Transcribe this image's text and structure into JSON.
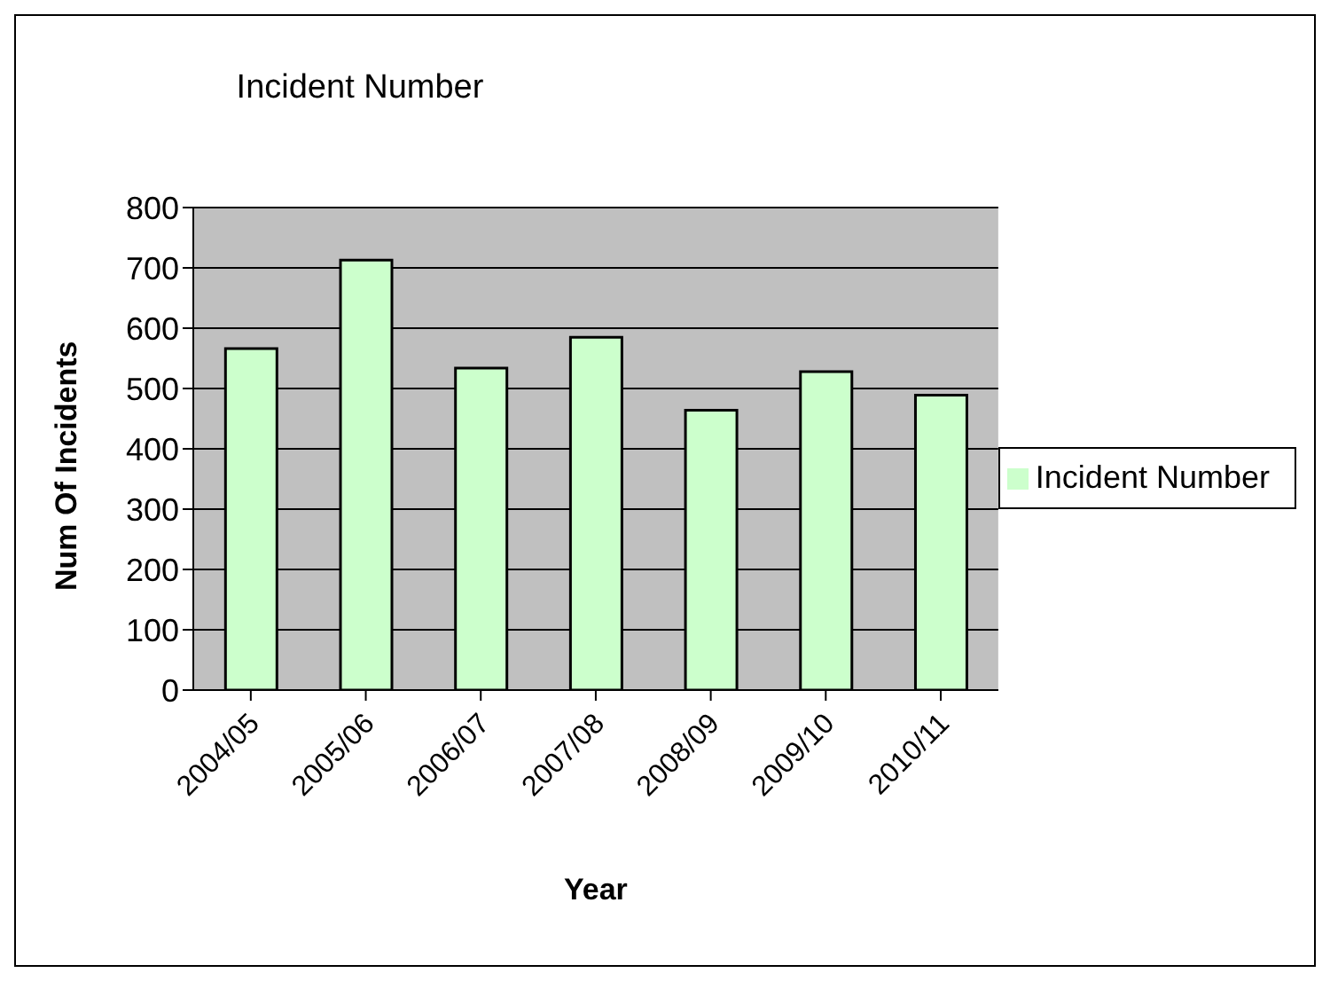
{
  "chart_data": {
    "type": "bar",
    "title": "Incident Number",
    "xlabel": "Year",
    "ylabel": "Num Of Incidents",
    "categories": [
      "2004/05",
      "2005/06",
      "2006/07",
      "2007/08",
      "2008/09",
      "2009/10",
      "2010/11"
    ],
    "series": [
      {
        "name": "Incident Number",
        "color": "#ccffcc",
        "values": [
          566,
          713,
          534,
          585,
          464,
          528,
          489
        ]
      }
    ],
    "ylim": [
      0,
      800
    ],
    "yticks": [
      0,
      100,
      200,
      300,
      400,
      500,
      600,
      700,
      800
    ],
    "grid": "y",
    "legend": "right"
  }
}
